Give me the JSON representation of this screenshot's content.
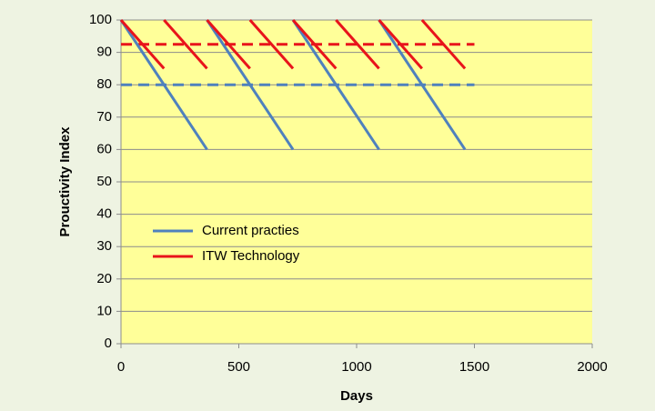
{
  "chart_data": {
    "type": "line",
    "xlabel": "Days",
    "ylabel": "Prouctivity Index",
    "xlim": [
      0,
      2000
    ],
    "xticks": [
      0,
      500,
      1000,
      1500,
      2000
    ],
    "ylim": [
      0,
      100
    ],
    "yticks": [
      0,
      10,
      20,
      30,
      40,
      50,
      60,
      70,
      80,
      90,
      100
    ],
    "grid": true,
    "legend": "inside-left",
    "series": [
      {
        "name": "Current practies",
        "color": "#4f81bd",
        "x": [
          0,
          365,
          null,
          365,
          730,
          null,
          730,
          1095,
          null,
          1095,
          1460
        ],
        "values": [
          100,
          60,
          null,
          100,
          60,
          null,
          100,
          60,
          null,
          100,
          60
        ]
      },
      {
        "name": "ITW Technology",
        "color": "#e8141b",
        "x": [
          0,
          182.5,
          null,
          182.5,
          365,
          null,
          365,
          547.5,
          null,
          547.5,
          730,
          null,
          730,
          912.5,
          null,
          912.5,
          1095,
          null,
          1095,
          1277.5,
          null,
          1277.5,
          1460
        ],
        "values": [
          100,
          85,
          null,
          100,
          85,
          null,
          100,
          85,
          null,
          100,
          85,
          null,
          100,
          85,
          null,
          100,
          85,
          null,
          100,
          85,
          null,
          100,
          85
        ]
      }
    ],
    "reference_lines": [
      {
        "y": 80,
        "x": [
          0,
          1500
        ],
        "color": "#4f81bd",
        "dashed": true
      },
      {
        "y": 92.5,
        "x": [
          0,
          1500
        ],
        "color": "#e8141b",
        "dashed": true
      }
    ]
  }
}
